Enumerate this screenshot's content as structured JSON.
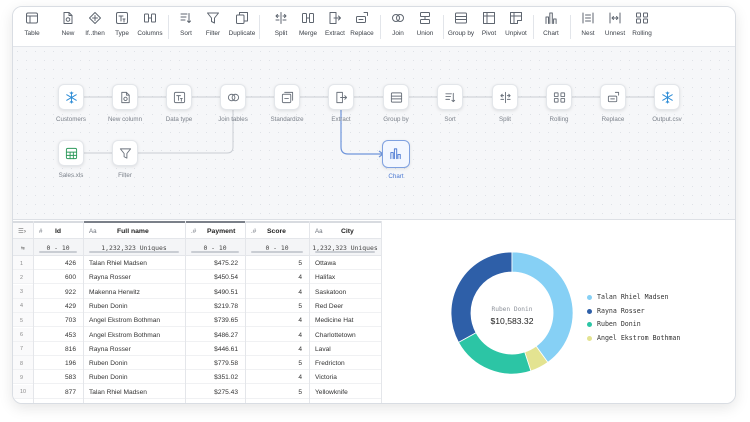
{
  "toolbar": {
    "items": [
      {
        "label": "Table",
        "icon": "table-icon"
      },
      {
        "label": "New",
        "icon": "new-file-icon"
      },
      {
        "label": "If..then",
        "icon": "diamond-icon"
      },
      {
        "label": "Type",
        "icon": "type-icon"
      },
      {
        "label": "Columns",
        "icon": "columns-icon"
      },
      {
        "label": "Sort",
        "icon": "sort-icon"
      },
      {
        "label": "Filter",
        "icon": "filter-icon"
      },
      {
        "label": "Duplicate",
        "icon": "duplicate-icon"
      },
      {
        "label": "Split",
        "icon": "split-icon"
      },
      {
        "label": "Merge",
        "icon": "merge-icon"
      },
      {
        "label": "Extract",
        "icon": "extract-icon"
      },
      {
        "label": "Replace",
        "icon": "replace-icon"
      },
      {
        "label": "Join",
        "icon": "join-icon"
      },
      {
        "label": "Union",
        "icon": "union-icon"
      },
      {
        "label": "Group by",
        "icon": "group-by-icon"
      },
      {
        "label": "Pivot",
        "icon": "pivot-icon"
      },
      {
        "label": "Unpivot",
        "icon": "unpivot-icon"
      },
      {
        "label": "Chart",
        "icon": "chart-icon"
      },
      {
        "label": "Nest",
        "icon": "nest-icon"
      },
      {
        "label": "Unnest",
        "icon": "unnest-icon"
      },
      {
        "label": "Rolling",
        "icon": "rolling-icon"
      }
    ]
  },
  "pipeline": {
    "nodes": [
      {
        "label": "Customers",
        "icon": "snowflake-icon"
      },
      {
        "label": "New column",
        "icon": "new-file-icon"
      },
      {
        "label": "Data type",
        "icon": "type-icon"
      },
      {
        "label": "Join tables",
        "icon": "join-icon"
      },
      {
        "label": "Standardize",
        "icon": "standardize-icon"
      },
      {
        "label": "Extract",
        "icon": "extract-icon"
      },
      {
        "label": "Group by",
        "icon": "group-by-icon"
      },
      {
        "label": "Sort",
        "icon": "sort-icon"
      },
      {
        "label": "Split",
        "icon": "split-icon"
      },
      {
        "label": "Rolling",
        "icon": "rolling-icon"
      },
      {
        "label": "Replace",
        "icon": "replace-icon"
      },
      {
        "label": "Output.csv",
        "icon": "snowflake-icon"
      },
      {
        "label": "Sales.xls",
        "icon": "spreadsheet-icon"
      },
      {
        "label": "Filter",
        "icon": "filter-icon"
      },
      {
        "label": "Chart",
        "icon": "chart-icon",
        "selected": true
      }
    ]
  },
  "table": {
    "columns": [
      {
        "name": "Id",
        "type": "#",
        "summary": "0 - 10",
        "align": "r"
      },
      {
        "name": "Full name",
        "type": "Aa",
        "summary": "1,232,323 Uniques",
        "align": "l"
      },
      {
        "name": "Payment",
        "type": ".#",
        "summary": "0 - 10",
        "align": "r"
      },
      {
        "name": "Score",
        "type": ".#",
        "summary": "0 - 10",
        "align": "r"
      },
      {
        "name": "City",
        "type": "Aa",
        "summary": "1,232,323 Uniques",
        "align": "l"
      }
    ],
    "rows": [
      [
        "426",
        "Talan Rhiel Madsen",
        "$475.22",
        "5",
        "Ottawa"
      ],
      [
        "600",
        "Rayna Rosser",
        "$450.54",
        "4",
        "Halifax"
      ],
      [
        "922",
        "Makenna Herwitz",
        "$490.51",
        "4",
        "Saskatoon"
      ],
      [
        "429",
        "Ruben Donin",
        "$219.78",
        "5",
        "Red Deer"
      ],
      [
        "703",
        "Angel Ekstrom Bothman",
        "$739.65",
        "4",
        "Medicine Hat"
      ],
      [
        "453",
        "Angel Ekstrom Bothman",
        "$486.27",
        "4",
        "Charlottetown"
      ],
      [
        "816",
        "Rayna Rosser",
        "$446.61",
        "4",
        "Laval"
      ],
      [
        "196",
        "Ruben Donin",
        "$779.58",
        "5",
        "Fredricton"
      ],
      [
        "583",
        "Ruben Donin",
        "$351.02",
        "4",
        "Victoria"
      ],
      [
        "877",
        "Talan Rhiel Madsen",
        "$275.43",
        "5",
        "Yellowknife"
      ]
    ]
  },
  "chart_data": {
    "type": "pie",
    "donut": true,
    "center_label": "Ruben Donin",
    "center_value": "$10,583.32",
    "legend_position": "right",
    "categories": [
      "Talan Rhiel Madsen",
      "Rayna Rosser",
      "Ruben Donin",
      "Angel Ekstrom Bothman"
    ],
    "values": [
      40,
      33,
      22,
      5
    ],
    "colors": [
      "#86d0f5",
      "#2e5fa8",
      "#2cc5a5",
      "#e3e391"
    ]
  }
}
